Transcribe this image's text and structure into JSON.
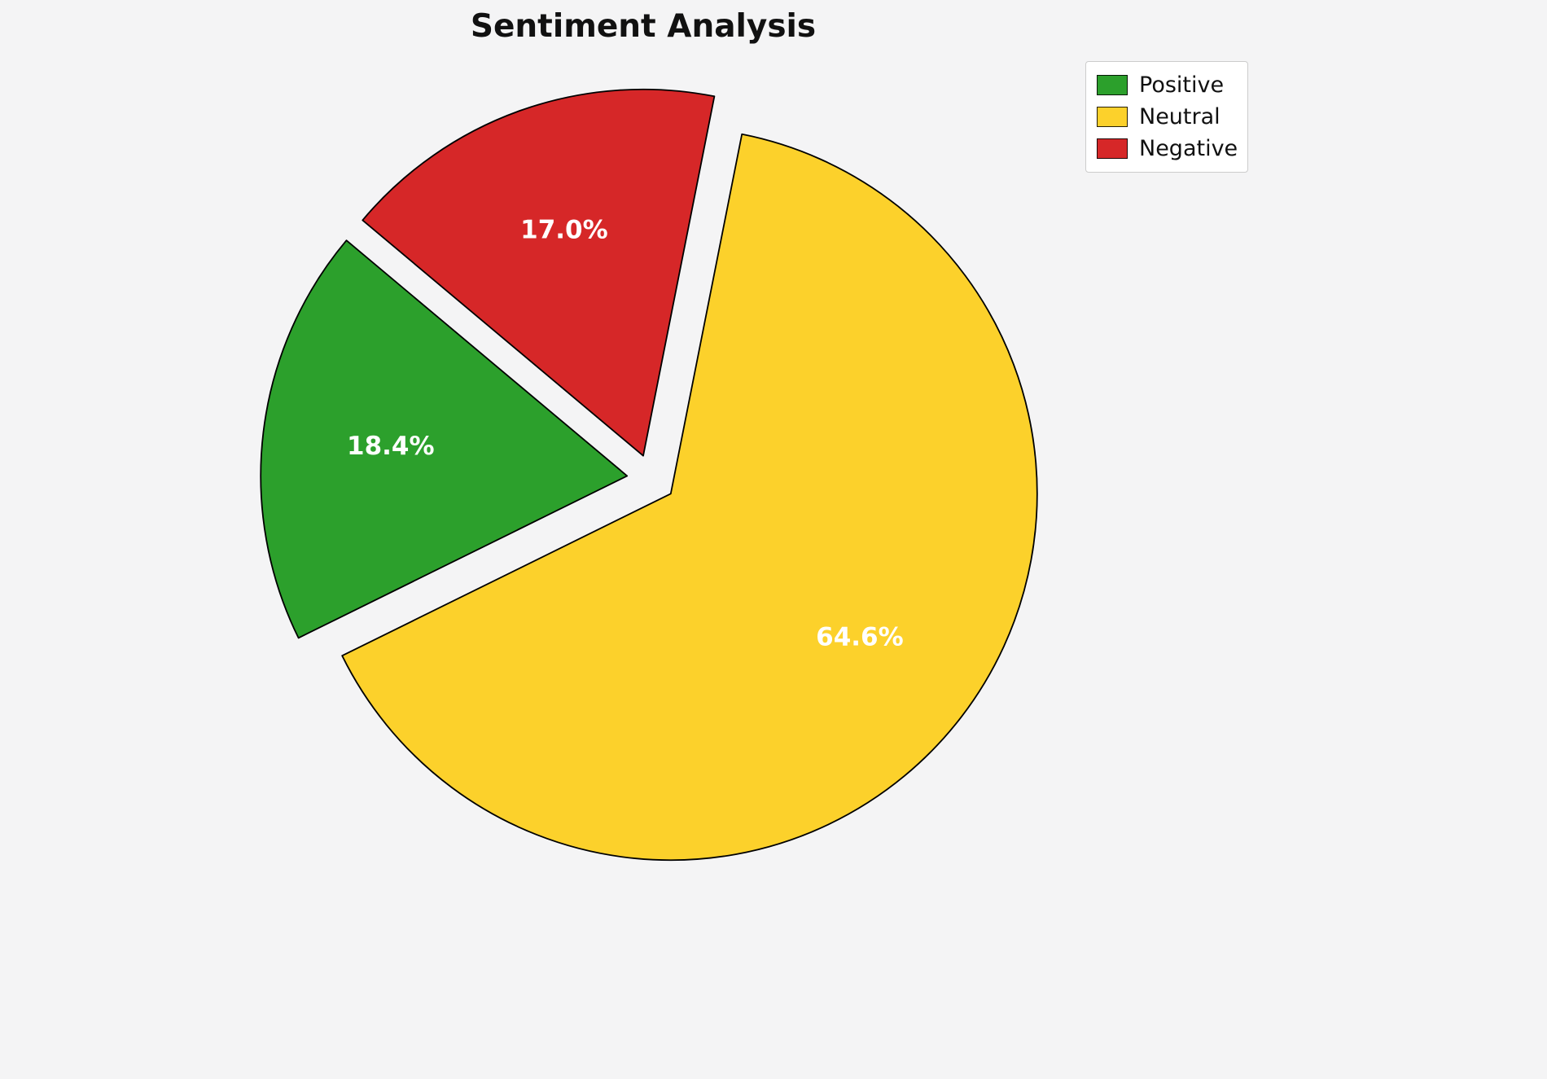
{
  "chart_data": {
    "type": "pie",
    "title": "Sentiment Analysis",
    "labels": [
      "Positive",
      "Neutral",
      "Negative"
    ],
    "values": [
      18.4,
      64.6,
      17.0
    ],
    "percent_labels": [
      "18.4%",
      "64.6%",
      "17.0%"
    ],
    "colors": [
      "#2ca02c",
      "#fcd12b",
      "#d62728"
    ],
    "start_angle": 140,
    "direction": "counterclockwise",
    "explode": 0.065,
    "edge_color": "#000000",
    "label_color": "#ffffff",
    "background": "#f4f4f5",
    "legend_position": "upper right"
  },
  "legend": {
    "items": [
      {
        "label": "Positive",
        "color": "#2ca02c"
      },
      {
        "label": "Neutral",
        "color": "#fcd12b"
      },
      {
        "label": "Negative",
        "color": "#d62728"
      }
    ]
  }
}
